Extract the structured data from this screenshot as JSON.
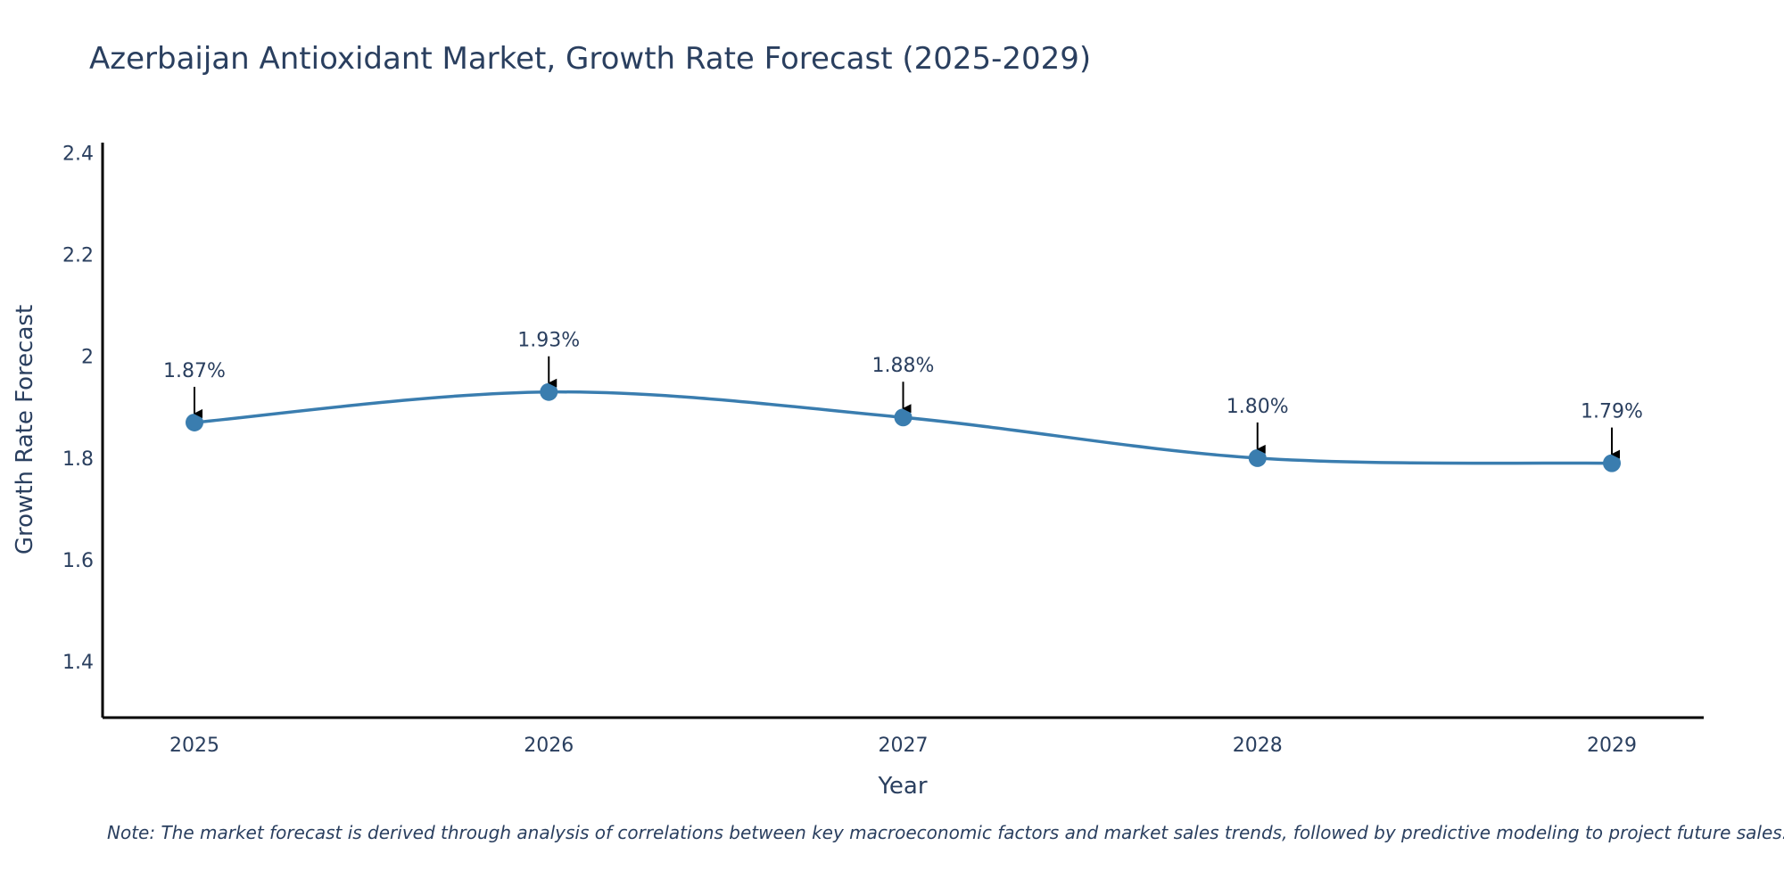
{
  "chart_data": {
    "type": "line",
    "title": "Azerbaijan Antioxidant Market, Growth Rate Forecast (2025-2029)",
    "xlabel": "Year",
    "ylabel": "Growth Rate Forecast",
    "categories": [
      "2025",
      "2026",
      "2027",
      "2028",
      "2029"
    ],
    "values": [
      1.87,
      1.93,
      1.88,
      1.8,
      1.79
    ],
    "data_labels": [
      "1.87%",
      "1.93%",
      "1.88%",
      "1.80%",
      "1.79%"
    ],
    "ylim": [
      1.29,
      2.42
    ],
    "yticks": [
      1.4,
      1.6,
      1.8,
      2.0,
      2.2,
      2.4
    ],
    "ytick_labels": [
      "1.4",
      "1.6",
      "1.8",
      "2",
      "2.2",
      "2.4"
    ],
    "grid": false,
    "line_shape": "spline",
    "colors": {
      "line": "#3a7daf",
      "marker": "#3a7daf",
      "arrow": "#000000",
      "axis": "#000000",
      "text": "#2a3f5f"
    },
    "note": "Note: The market forecast is derived through analysis of correlations between key macroeconomic factors and market sales trends, followed by predictive modeling to project future sales."
  }
}
